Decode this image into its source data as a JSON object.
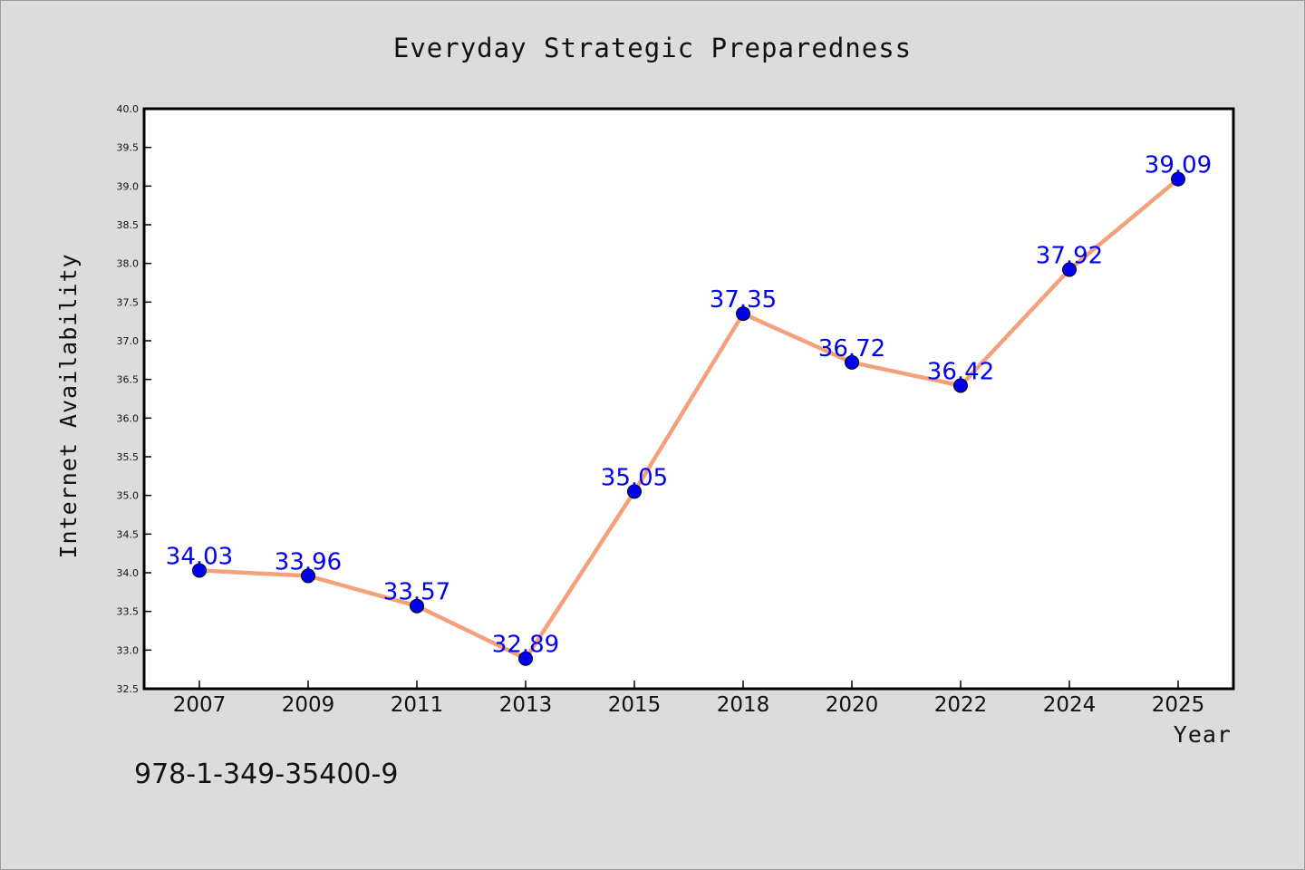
{
  "chart_data": {
    "type": "line",
    "title": "Everyday Strategic Preparedness",
    "xlabel": "Year",
    "ylabel": "Internet Availability",
    "categories": [
      "2007",
      "2009",
      "2011",
      "2013",
      "2015",
      "2018",
      "2020",
      "2022",
      "2024",
      "2025"
    ],
    "series": [
      {
        "values": [
          34.03,
          33.96,
          33.57,
          32.89,
          35.05,
          37.35,
          36.72,
          36.42,
          37.92,
          39.09
        ],
        "data_labels": [
          "34.03",
          "33.96",
          "33.57",
          "32.89",
          "35.05",
          "37.35",
          "36.72",
          "36.42",
          "37.92",
          "39.09"
        ],
        "line_color": "#f4a07a",
        "marker_color": "#0000ee"
      }
    ],
    "ylim": [
      32.5,
      40.0
    ],
    "yticks": [
      "32.5",
      "33.0",
      "33.5",
      "34.0",
      "34.5",
      "35.0",
      "35.5",
      "36.0",
      "36.5",
      "37.0",
      "37.5",
      "38.0",
      "38.5",
      "39.0",
      "39.5",
      "40.0"
    ],
    "grid": false,
    "legend": "none"
  },
  "footer": {
    "isbn": "978-1-349-35400-9"
  },
  "colors": {
    "background": "#dcdcdc",
    "plot_background": "#ffffff",
    "line": "#f4a07a",
    "marker": "#0000ee",
    "data_label": "#0000ee"
  }
}
